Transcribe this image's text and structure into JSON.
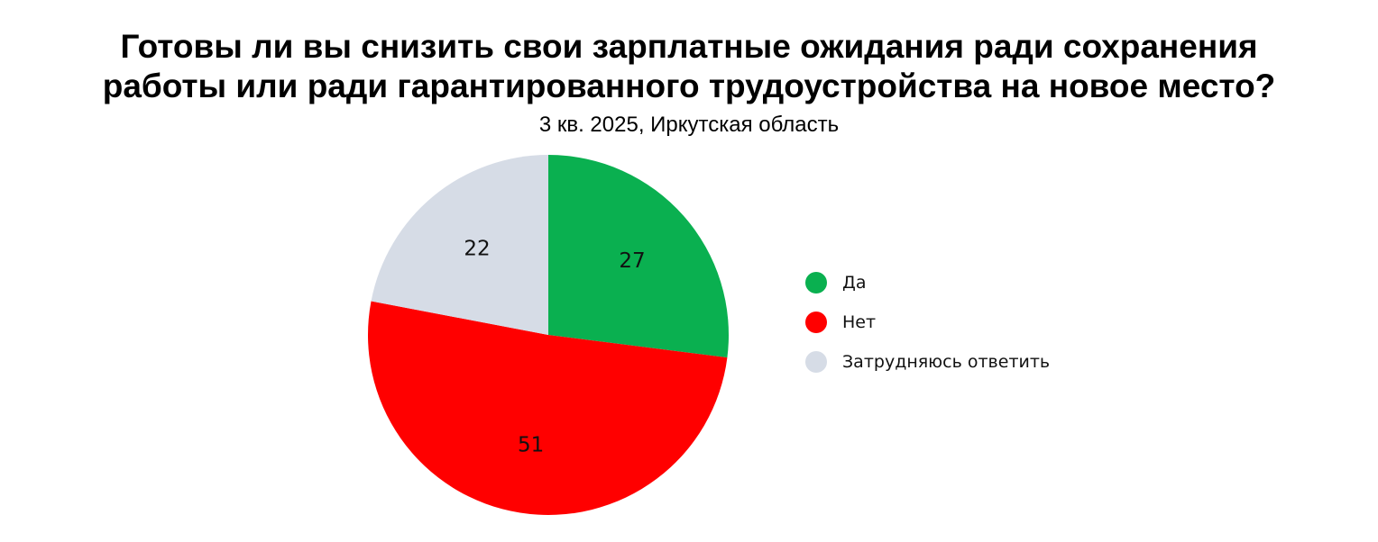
{
  "chart_data": {
    "type": "pie",
    "title_lines": [
      "Готовы ли вы снизить свои зарплатные ожидания ради сохранения",
      "работы или ради гарантированного трудоустройства на новое место?"
    ],
    "subtitle": "3 кв. 2025, Иркутская область",
    "slices": [
      {
        "name": "Да",
        "value": 27,
        "label": "27",
        "color": "#0ab050"
      },
      {
        "name": "Нет",
        "value": 51,
        "label": "51",
        "color": "#ff0000"
      },
      {
        "name": "Затрудняюсь ответить",
        "value": 22,
        "label": "22",
        "color": "#d6dce6"
      }
    ],
    "legend_position": "right"
  }
}
